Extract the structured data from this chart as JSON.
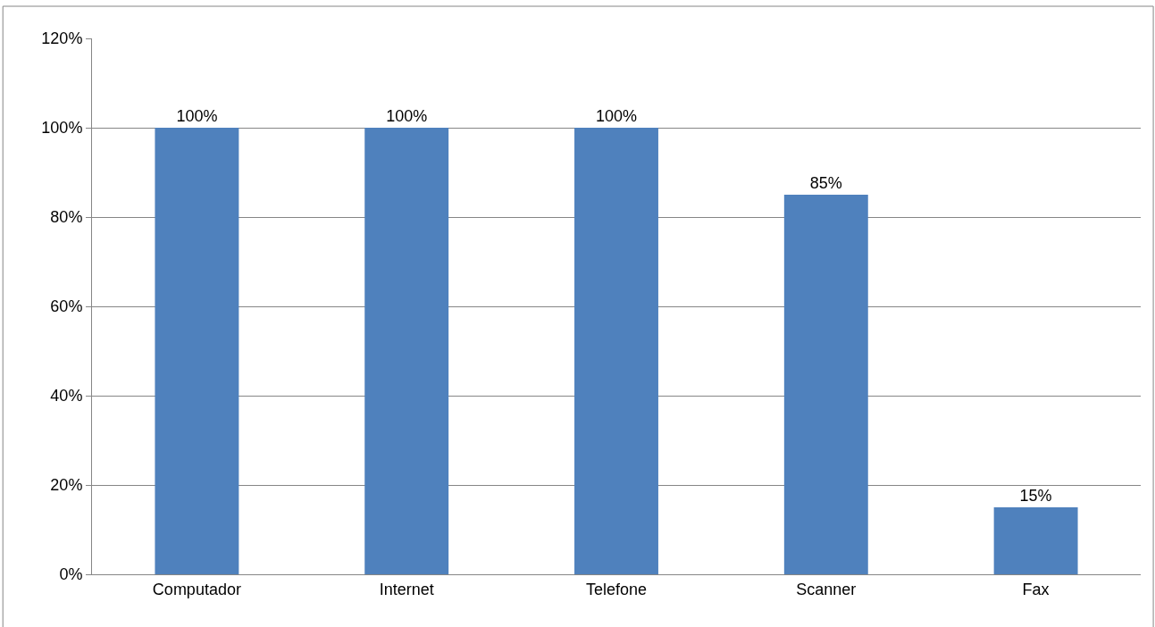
{
  "chart_data": {
    "type": "bar",
    "categories": [
      "Computador",
      "Internet",
      "Telefone",
      "Scanner",
      "Fax"
    ],
    "values": [
      100,
      100,
      100,
      85,
      15
    ],
    "color": "#4f81bd",
    "value_labels": [
      "100%",
      "100%",
      "100%",
      "85%",
      "15%"
    ],
    "ylim": [
      0,
      120
    ],
    "yticks": [
      {
        "value": 0,
        "label": "0%"
      },
      {
        "value": 20,
        "label": "20%"
      },
      {
        "value": 40,
        "label": "40%"
      },
      {
        "value": 60,
        "label": "60%"
      },
      {
        "value": 80,
        "label": "80%"
      },
      {
        "value": 100,
        "label": "100%"
      },
      {
        "value": 120,
        "label": "120%"
      }
    ],
    "grid": "y"
  }
}
